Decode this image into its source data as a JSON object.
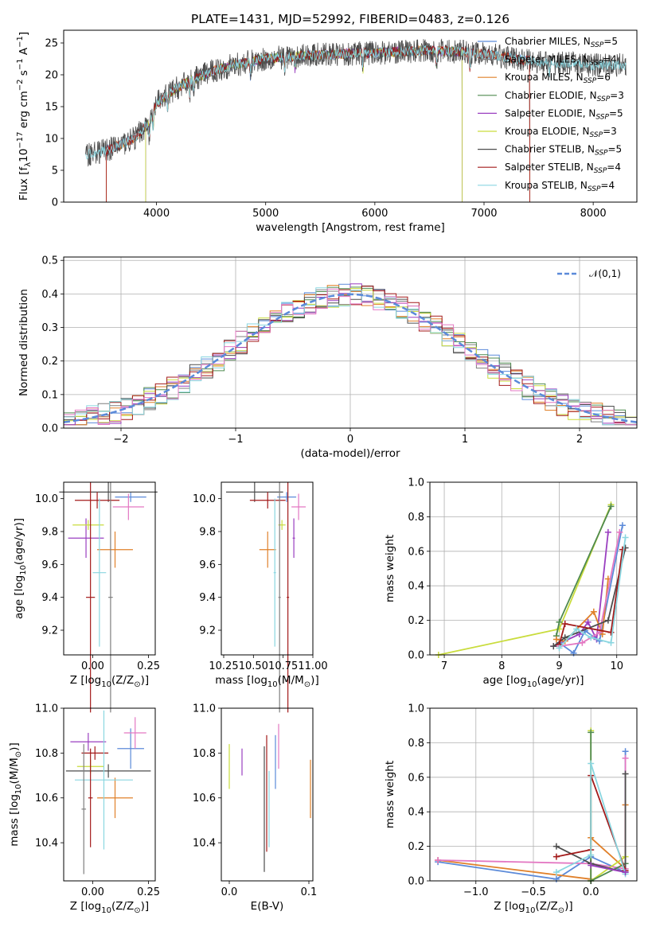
{
  "title": "PLATE=1431, MJD=52992, FIBERID=0483, z=0.126",
  "colors": {
    "Chabrier MILES": "#5b8ad9",
    "Salpeter MILES": "#7f7f7f",
    "Kroupa MILES": "#e0802a",
    "Chabrier ELODIE": "#4f8a4f",
    "Salpeter ELODIE": "#9a3fc0",
    "Kroupa ELODIE": "#c9dc3c",
    "Chabrier STELIB": "#4d4d4d",
    "Salpeter STELIB": "#a31a1a",
    "Kroupa STELIB": "#8ad6e0",
    "pink": "#e377c2",
    "normal": "#5b8ad9"
  },
  "chart_data": [
    {
      "type": "line",
      "xlabel": "wavelength [Angstrom, rest frame]",
      "ylabel": "Flux [f_λ10^-17 erg cm^-2 s^-1 A^-1]",
      "xlim": [
        3150,
        8400
      ],
      "ylim": [
        0,
        27
      ],
      "xticks": [
        "4000",
        "5000",
        "6000",
        "7000",
        "8000"
      ],
      "yticks": [
        "0",
        "5",
        "10",
        "15",
        "20",
        "25"
      ],
      "continuum": {
        "x": [
          3350,
          3500,
          3600,
          3800,
          3950,
          4000,
          4150,
          4300,
          4500,
          4700,
          5000,
          5300,
          5600,
          5900,
          6200,
          6500,
          6800,
          7100,
          7500,
          8000,
          8300
        ],
        "y": [
          7.5,
          8.0,
          8.5,
          10,
          13,
          15.5,
          17.5,
          19,
          20.5,
          21.5,
          22.5,
          23,
          23.2,
          23.4,
          23.6,
          23.8,
          23.6,
          23.0,
          22.0,
          21.5,
          21.5
        ]
      },
      "series": [
        {
          "name": "Chabrier MILES",
          "n": "5",
          "start": 3540,
          "end": 7420
        },
        {
          "name": "Salpeter MILES",
          "n": "4",
          "start": 3540,
          "end": 7420
        },
        {
          "name": "Kroupa MILES",
          "n": "6",
          "start": 3540,
          "end": 7420
        },
        {
          "name": "Chabrier ELODIE",
          "n": "3",
          "start": 3900,
          "end": 6800
        },
        {
          "name": "Salpeter ELODIE",
          "n": "5",
          "start": 3900,
          "end": 6800
        },
        {
          "name": "Kroupa ELODIE",
          "n": "3",
          "start": 3900,
          "end": 6800
        },
        {
          "name": "Chabrier STELIB",
          "n": "5",
          "start": 3350,
          "end": 8300
        },
        {
          "name": "Salpeter STELIB",
          "n": "4",
          "start": 3540,
          "end": 7420
        },
        {
          "name": "Kroupa STELIB",
          "n": "4",
          "start": 3350,
          "end": 8300
        }
      ]
    },
    {
      "type": "step",
      "xlabel": "(data-model)/error",
      "ylabel": "Normed distribution",
      "xlim": [
        -2.5,
        2.5
      ],
      "ylim": [
        0,
        0.51
      ],
      "xticks": [
        "−2",
        "−1",
        "0",
        "1",
        "2"
      ],
      "yticks": [
        "0.0",
        "0.1",
        "0.2",
        "0.3",
        "0.4",
        "0.5"
      ],
      "legend": "𝒩(0,1)",
      "bin_width": 0.1
    },
    {
      "type": "errorbar",
      "xlabel": "Z [log10(Z/Z☉)]",
      "ylabel": "age  [log10(age/yr)]",
      "xlim": [
        -0.13,
        0.28
      ],
      "ylim": [
        9.05,
        10.1
      ],
      "xticks": [
        "0.00",
        "0.25"
      ],
      "yticks": [
        "9.2",
        "9.4",
        "9.6",
        "9.8",
        "10.0"
      ],
      "points": [
        {
          "c": "Chabrier MILES",
          "x": 0.17,
          "xe": 0.07,
          "y": 10.01,
          "ye": 0.03
        },
        {
          "c": "Kroupa MILES",
          "x": 0.1,
          "xe": 0.08,
          "y": 9.69,
          "ye": 0.11
        },
        {
          "c": "Salpeter ELODIE",
          "x": -0.03,
          "xe": 0.08,
          "y": 9.76,
          "ye": 0.12
        },
        {
          "c": "Kroupa ELODIE",
          "x": -0.02,
          "xe": 0.07,
          "y": 9.84,
          "ye": 0.03
        },
        {
          "c": "Chabrier STELIB",
          "x": 0.07,
          "xe": 0.22,
          "y": 10.04,
          "ye": 0.06
        },
        {
          "c": "Salpeter STELIB",
          "x": 0.02,
          "xe": 0.1,
          "y": 9.99,
          "ye": 0.05
        },
        {
          "c": "pink",
          "x": 0.16,
          "xe": 0.07,
          "y": 9.95,
          "ye": 0.08
        },
        {
          "c": "Kroupa STELIB",
          "x": 0.03,
          "xe": 0.03,
          "y": 9.55,
          "ye": 0.45
        },
        {
          "c": "Salpeter STELIB",
          "x": -0.01,
          "xe": 0.02,
          "y": 9.4,
          "ye": 0.7
        },
        {
          "c": "Salpeter MILES",
          "x": 0.08,
          "xe": 0.01,
          "y": 9.4,
          "ye": 0.7
        }
      ]
    },
    {
      "type": "errorbar",
      "xlabel": "mass [log10(M/M☉)]",
      "ylabel": "",
      "xlim": [
        10.23,
        11.0
      ],
      "ylim": [
        9.05,
        10.1
      ],
      "xticks": [
        "10.25",
        "10.50",
        "10.75",
        "11.00"
      ],
      "yticks": [
        "9.2",
        "9.4",
        "9.6",
        "9.8",
        "10.0"
      ],
      "points": [
        {
          "c": "Chabrier MILES",
          "x": 10.78,
          "xe": 0.08,
          "y": 10.01,
          "ye": 0.03
        },
        {
          "c": "Kroupa MILES",
          "x": 10.62,
          "xe": 0.07,
          "y": 9.69,
          "ye": 0.11
        },
        {
          "c": "Salpeter ELODIE",
          "x": 10.84,
          "xe": 0.01,
          "y": 9.76,
          "ye": 0.12
        },
        {
          "c": "Kroupa ELODIE",
          "x": 10.74,
          "xe": 0.03,
          "y": 9.84,
          "ye": 0.03
        },
        {
          "c": "Chabrier STELIB",
          "x": 10.51,
          "xe": 0.24,
          "y": 10.04,
          "ye": 0.06
        },
        {
          "c": "Salpeter STELIB",
          "x": 10.62,
          "xe": 0.15,
          "y": 9.99,
          "ye": 0.05
        },
        {
          "c": "pink",
          "x": 10.88,
          "xe": 0.06,
          "y": 9.95,
          "ye": 0.08
        },
        {
          "c": "Kroupa STELIB",
          "x": 10.68,
          "xe": 0.01,
          "y": 9.55,
          "ye": 0.45
        },
        {
          "c": "Salpeter STELIB",
          "x": 10.79,
          "xe": 0.01,
          "y": 9.4,
          "ye": 0.7
        },
        {
          "c": "Salpeter MILES",
          "x": 10.72,
          "xe": 0.01,
          "y": 9.4,
          "ye": 0.7
        }
      ]
    },
    {
      "type": "line",
      "xlabel": "age  [log10(age/yr)]",
      "ylabel": "mass weight",
      "xlim": [
        6.75,
        10.35
      ],
      "ylim": [
        0,
        1
      ],
      "xticks": [
        "7",
        "8",
        "9",
        "10"
      ],
      "yticks": [
        "0.0",
        "0.2",
        "0.4",
        "0.6",
        "0.8",
        "1.0"
      ],
      "series": [
        {
          "c": "Kroupa ELODIE",
          "x": [
            6.9,
            9.0,
            9.9
          ],
          "y": [
            0.0,
            0.15,
            0.87
          ]
        },
        {
          "c": "Chabrier ELODIE",
          "x": [
            8.95,
            9.0,
            9.9
          ],
          "y": [
            0.11,
            0.19,
            0.86
          ]
        },
        {
          "c": "Salpeter ELODIE",
          "x": [
            8.9,
            9.35,
            9.5,
            9.65,
            9.85
          ],
          "y": [
            0.05,
            0.12,
            0.19,
            0.09,
            0.71
          ]
        },
        {
          "c": "Chabrier MILES",
          "x": [
            9.0,
            9.25,
            9.45,
            9.7,
            10.1
          ],
          "y": [
            0.07,
            0.01,
            0.14,
            0.08,
            0.75
          ]
        },
        {
          "c": "Kroupa MILES",
          "x": [
            8.95,
            9.1,
            9.6,
            9.75,
            9.85
          ],
          "y": [
            0.09,
            0.08,
            0.25,
            0.12,
            0.44
          ]
        },
        {
          "c": "pink",
          "x": [
            9.0,
            9.4,
            9.7,
            10.05
          ],
          "y": [
            0.05,
            0.07,
            0.13,
            0.71
          ]
        },
        {
          "c": "Chabrier STELIB",
          "x": [
            8.9,
            9.1,
            9.85,
            10.15
          ],
          "y": [
            0.05,
            0.1,
            0.2,
            0.62
          ]
        },
        {
          "c": "Salpeter STELIB",
          "x": [
            9.0,
            9.1,
            9.9,
            10.1
          ],
          "y": [
            0.06,
            0.18,
            0.13,
            0.61
          ]
        },
        {
          "c": "Kroupa STELIB",
          "x": [
            9.0,
            9.3,
            9.55,
            9.9,
            10.15
          ],
          "y": [
            0.04,
            0.15,
            0.1,
            0.07,
            0.68
          ]
        }
      ]
    },
    {
      "type": "errorbar",
      "xlabel": "Z [log10(Z/Z☉)]",
      "ylabel": "mass [log10(M/M☉)]",
      "xlim": [
        -0.13,
        0.28
      ],
      "ylim": [
        10.23,
        11.0
      ],
      "xticks": [
        "0.00",
        "0.25"
      ],
      "yticks": [
        "10.4",
        "10.6",
        "10.8",
        "11.0"
      ],
      "points": [
        {
          "c": "Chabrier MILES",
          "x": 0.17,
          "xe": 0.06,
          "y": 10.82,
          "ye": 0.09
        },
        {
          "c": "Kroupa MILES",
          "x": 0.1,
          "xe": 0.08,
          "y": 10.6,
          "ye": 0.09
        },
        {
          "c": "Salpeter ELODIE",
          "x": -0.02,
          "xe": 0.08,
          "y": 10.85,
          "ye": 0.04
        },
        {
          "c": "Kroupa ELODIE",
          "x": -0.01,
          "xe": 0.06,
          "y": 10.74,
          "ye": 0.03
        },
        {
          "c": "Chabrier STELIB",
          "x": 0.07,
          "xe": 0.19,
          "y": 10.72,
          "ye": 0.03
        },
        {
          "c": "Salpeter STELIB",
          "x": 0.01,
          "xe": 0.06,
          "y": 10.8,
          "ye": 0.03
        },
        {
          "c": "pink",
          "x": 0.19,
          "xe": 0.05,
          "y": 10.89,
          "ye": 0.07
        },
        {
          "c": "Kroupa STELIB",
          "x": 0.05,
          "xe": 0.13,
          "y": 10.68,
          "ye": 0.31
        },
        {
          "c": "Salpeter STELIB",
          "x": -0.01,
          "xe": 0.01,
          "y": 10.6,
          "ye": 0.22
        },
        {
          "c": "Salpeter MILES",
          "x": -0.04,
          "xe": 0.01,
          "y": 10.55,
          "ye": 0.29
        }
      ]
    },
    {
      "type": "errorbar",
      "xlabel": "E(B-V)",
      "ylabel": "",
      "xlim": [
        -0.01,
        0.105
      ],
      "ylim": [
        10.23,
        11.0
      ],
      "xticks": [
        "0.0",
        "0.1"
      ],
      "yticks": [
        "10.4",
        "10.6",
        "10.8",
        "11.0"
      ],
      "points": [
        {
          "c": "Kroupa ELODIE",
          "x": 0.0,
          "xe": 0,
          "y": 10.74,
          "ye": 0.1
        },
        {
          "c": "Salpeter ELODIE",
          "x": 0.016,
          "xe": 0,
          "y": 10.76,
          "ye": 0.06
        },
        {
          "c": "Chabrier STELIB",
          "x": 0.044,
          "xe": 0,
          "y": 10.55,
          "ye": 0.28
        },
        {
          "c": "Salpeter STELIB",
          "x": 0.047,
          "xe": 0,
          "y": 10.62,
          "ye": 0.26
        },
        {
          "c": "Kroupa STELIB",
          "x": 0.05,
          "xe": 0,
          "y": 10.55,
          "ye": 0.17
        },
        {
          "c": "Chabrier MILES",
          "x": 0.058,
          "xe": 0,
          "y": 10.76,
          "ye": 0.12
        },
        {
          "c": "pink",
          "x": 0.062,
          "xe": 0,
          "y": 10.83,
          "ye": 0.1
        },
        {
          "c": "Kroupa MILES",
          "x": 0.102,
          "xe": 0,
          "y": 10.64,
          "ye": 0.13
        }
      ]
    },
    {
      "type": "line",
      "xlabel": "Z [log10(Z/Z☉)]",
      "ylabel": "mass weight",
      "xlim": [
        -1.4,
        0.4
      ],
      "ylim": [
        0,
        1
      ],
      "xticks": [
        "−1.0",
        "−0.5",
        "0.0"
      ],
      "yticks": [
        "0.0",
        "0.2",
        "0.4",
        "0.6",
        "0.8",
        "1.0"
      ],
      "series": [
        {
          "c": "Chabrier MILES",
          "x": [
            -1.33,
            -0.3,
            0.0,
            0.3,
            0.3
          ],
          "y": [
            0.11,
            0.01,
            0.14,
            0.05,
            0.75
          ]
        },
        {
          "c": "Kroupa MILES",
          "x": [
            -1.33,
            0.0,
            0.0,
            0.3,
            0.3
          ],
          "y": [
            0.12,
            0.01,
            0.25,
            0.07,
            0.44
          ]
        },
        {
          "c": "pink",
          "x": [
            -1.33,
            0.0,
            0.3,
            0.3
          ],
          "y": [
            0.12,
            0.1,
            0.07,
            0.71
          ]
        },
        {
          "c": "Kroupa ELODIE",
          "x": [
            0.0,
            0.0,
            0.3
          ],
          "y": [
            0.87,
            0.0,
            0.14
          ]
        },
        {
          "c": "Chabrier ELODIE",
          "x": [
            0.0,
            0.0,
            0.3
          ],
          "y": [
            0.86,
            0.0,
            0.1
          ]
        },
        {
          "c": "Chabrier STELIB",
          "x": [
            -0.3,
            0.0,
            0.3,
            0.3
          ],
          "y": [
            0.2,
            0.1,
            0.05,
            0.62
          ]
        },
        {
          "c": "Salpeter STELIB",
          "x": [
            -0.3,
            0.0,
            0.0,
            0.3
          ],
          "y": [
            0.14,
            0.18,
            0.61,
            0.06
          ]
        },
        {
          "c": "Kroupa STELIB",
          "x": [
            -0.3,
            0.0,
            0.0,
            0.3
          ],
          "y": [
            0.05,
            0.15,
            0.68,
            0.04
          ]
        },
        {
          "c": "Salpeter ELODIE",
          "x": [
            0.0,
            0.3
          ],
          "y": [
            0.09,
            0.05
          ]
        }
      ]
    }
  ]
}
